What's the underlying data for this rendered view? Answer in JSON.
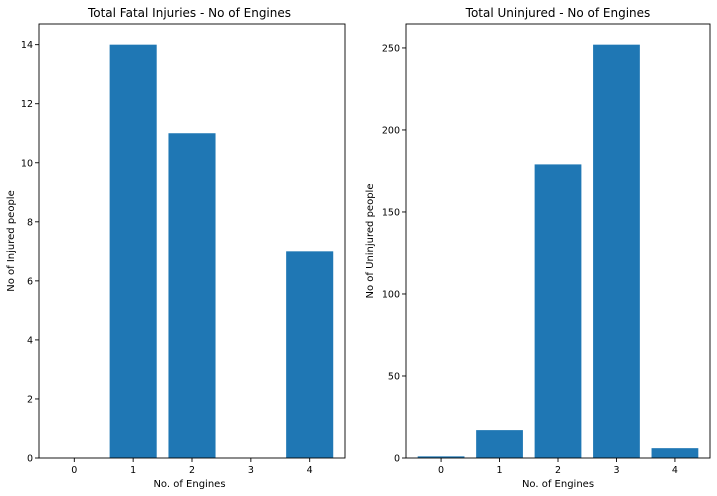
{
  "chart_data": [
    {
      "type": "bar",
      "title": "Total Fatal Injuries - No of Engines",
      "xlabel": "No. of Engines",
      "ylabel": "No of Injured people",
      "categories": [
        "0",
        "1",
        "2",
        "3",
        "4"
      ],
      "values": [
        0,
        14,
        11,
        0,
        7
      ],
      "ylim": [
        0,
        14.7
      ],
      "yticks": [
        0,
        2,
        4,
        6,
        8,
        10,
        12,
        14
      ],
      "yticklabels": [
        "0",
        "2",
        "4",
        "6",
        "8",
        "10",
        "12",
        "14"
      ],
      "bar_color": "#1f77b4",
      "grid": false,
      "legend": "none"
    },
    {
      "type": "bar",
      "title": "Total Uninjured - No of Engines",
      "xlabel": "No. of Engines",
      "ylabel": "No of Uninjured people",
      "categories": [
        "0",
        "1",
        "2",
        "3",
        "4"
      ],
      "values": [
        1,
        17,
        179,
        252,
        6
      ],
      "ylim": [
        0,
        264.6
      ],
      "yticks": [
        0,
        50,
        100,
        150,
        200,
        250
      ],
      "yticklabels": [
        "0",
        "50",
        "100",
        "150",
        "200",
        "250"
      ],
      "bar_color": "#1f77b4",
      "grid": false,
      "legend": "none"
    }
  ]
}
